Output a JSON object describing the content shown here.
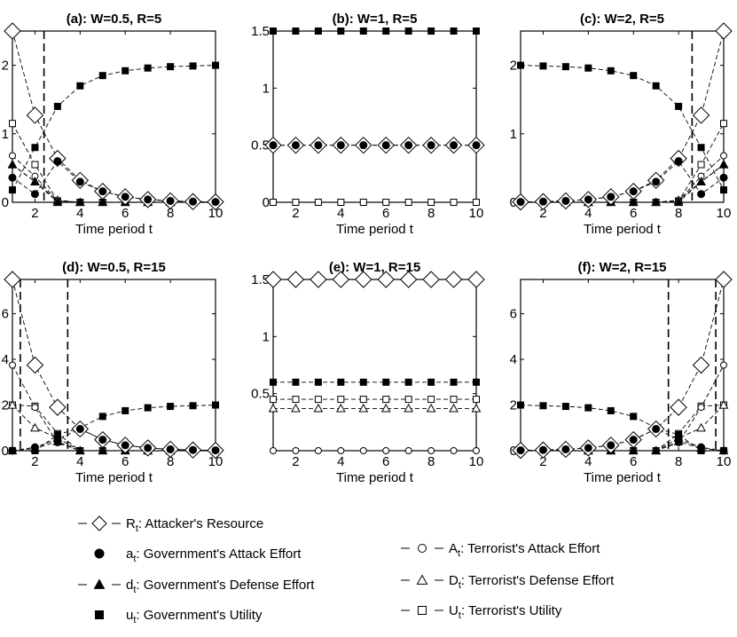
{
  "chart_data": [
    {
      "type": "line",
      "title": "(a): W=0.5, R=5",
      "xlabel": "Time period t",
      "ylabel": "",
      "xlim": [
        1,
        10
      ],
      "ylim": [
        0,
        2.5
      ],
      "xticks": [
        2,
        4,
        6,
        8,
        10
      ],
      "yticks": [
        0,
        1,
        2
      ],
      "dashed_vlines": [
        2.4
      ],
      "series": [
        {
          "key": "R",
          "x": [
            1,
            2,
            3,
            4,
            5,
            6,
            7,
            8,
            9,
            10
          ],
          "values": [
            2.5,
            1.27,
            0.64,
            0.32,
            0.16,
            0.08,
            0.04,
            0.02,
            0.01,
            0.005
          ]
        },
        {
          "key": "a",
          "x": [
            1,
            2,
            3,
            4,
            5,
            6,
            7,
            8,
            9,
            10
          ],
          "values": [
            0.36,
            0.12,
            0.6,
            0.3,
            0.16,
            0.08,
            0.04,
            0.02,
            0.01,
            0.005
          ]
        },
        {
          "key": "d",
          "x": [
            1,
            2,
            3,
            4,
            5,
            6,
            7,
            8,
            9,
            10
          ],
          "values": [
            0.55,
            0.3,
            0,
            0,
            0,
            0,
            0,
            0,
            0,
            0
          ]
        },
        {
          "key": "u",
          "x": [
            1,
            2,
            3,
            4,
            5,
            6,
            7,
            8,
            9,
            10
          ],
          "values": [
            0.18,
            0.8,
            1.4,
            1.7,
            1.85,
            1.92,
            1.96,
            1.98,
            1.99,
            2.0
          ]
        },
        {
          "key": "A",
          "x": [
            1,
            2,
            3,
            4,
            5,
            6,
            7,
            8,
            9,
            10
          ],
          "values": [
            0.68,
            0.38,
            0.02,
            0,
            0,
            0,
            0,
            0,
            0,
            0
          ]
        },
        {
          "key": "D",
          "x": [
            1,
            2,
            3,
            4,
            5,
            6,
            7,
            8,
            9,
            10
          ],
          "values": [
            0.55,
            0.3,
            0.03,
            0,
            0,
            0,
            0,
            0,
            0,
            0
          ]
        },
        {
          "key": "U",
          "x": [
            1,
            2,
            3,
            4,
            5,
            6,
            7,
            8,
            9,
            10
          ],
          "values": [
            1.15,
            0.55,
            0.02,
            0,
            0,
            0,
            0,
            0,
            0,
            0
          ]
        }
      ]
    },
    {
      "type": "line",
      "title": "(b): W=1, R=5",
      "xlabel": "Time period t",
      "ylabel": "",
      "xlim": [
        1,
        10
      ],
      "ylim": [
        0,
        1.5
      ],
      "xticks": [
        2,
        4,
        6,
        8,
        10
      ],
      "yticks": [
        0,
        0.5,
        1,
        1.5
      ],
      "dashed_vlines": [],
      "series": [
        {
          "key": "R",
          "x": [
            1,
            2,
            3,
            4,
            5,
            6,
            7,
            8,
            9,
            10
          ],
          "values": [
            0.5,
            0.5,
            0.5,
            0.5,
            0.5,
            0.5,
            0.5,
            0.5,
            0.5,
            0.5
          ]
        },
        {
          "key": "a",
          "x": [
            1,
            2,
            3,
            4,
            5,
            6,
            7,
            8,
            9,
            10
          ],
          "values": [
            0.5,
            0.5,
            0.5,
            0.5,
            0.5,
            0.5,
            0.5,
            0.5,
            0.5,
            0.5
          ]
        },
        {
          "key": "u",
          "x": [
            1,
            2,
            3,
            4,
            5,
            6,
            7,
            8,
            9,
            10
          ],
          "values": [
            1.5,
            1.5,
            1.5,
            1.5,
            1.5,
            1.5,
            1.5,
            1.5,
            1.5,
            1.5
          ]
        },
        {
          "key": "U",
          "x": [
            1,
            2,
            3,
            4,
            5,
            6,
            7,
            8,
            9,
            10
          ],
          "values": [
            0,
            0,
            0,
            0,
            0,
            0,
            0,
            0,
            0,
            0
          ]
        }
      ]
    },
    {
      "type": "line",
      "title": "(c): W=2, R=5",
      "xlabel": "Time period t",
      "ylabel": "",
      "xlim": [
        1,
        10
      ],
      "ylim": [
        0,
        2.5
      ],
      "xticks": [
        2,
        4,
        6,
        8,
        10
      ],
      "yticks": [
        0,
        1,
        2
      ],
      "dashed_vlines": [
        8.6
      ],
      "series": [
        {
          "key": "R",
          "x": [
            1,
            2,
            3,
            4,
            5,
            6,
            7,
            8,
            9,
            10
          ],
          "values": [
            0.005,
            0.01,
            0.02,
            0.04,
            0.08,
            0.16,
            0.32,
            0.64,
            1.27,
            2.5
          ]
        },
        {
          "key": "a",
          "x": [
            1,
            2,
            3,
            4,
            5,
            6,
            7,
            8,
            9,
            10
          ],
          "values": [
            0.005,
            0.01,
            0.02,
            0.04,
            0.08,
            0.16,
            0.3,
            0.6,
            0.12,
            0.36
          ]
        },
        {
          "key": "d",
          "x": [
            1,
            2,
            3,
            4,
            5,
            6,
            7,
            8,
            9,
            10
          ],
          "values": [
            0,
            0,
            0,
            0,
            0,
            0,
            0,
            0,
            0.3,
            0.55
          ]
        },
        {
          "key": "u",
          "x": [
            1,
            2,
            3,
            4,
            5,
            6,
            7,
            8,
            9,
            10
          ],
          "values": [
            2.0,
            1.99,
            1.98,
            1.96,
            1.92,
            1.85,
            1.7,
            1.4,
            0.8,
            0.18
          ]
        },
        {
          "key": "A",
          "x": [
            1,
            2,
            3,
            4,
            5,
            6,
            7,
            8,
            9,
            10
          ],
          "values": [
            0,
            0,
            0,
            0,
            0,
            0,
            0,
            0.02,
            0.38,
            0.68
          ]
        },
        {
          "key": "D",
          "x": [
            1,
            2,
            3,
            4,
            5,
            6,
            7,
            8,
            9,
            10
          ],
          "values": [
            0,
            0,
            0,
            0,
            0,
            0,
            0,
            0.03,
            0.3,
            0.55
          ]
        },
        {
          "key": "U",
          "x": [
            1,
            2,
            3,
            4,
            5,
            6,
            7,
            8,
            9,
            10
          ],
          "values": [
            0,
            0,
            0,
            0,
            0,
            0,
            0,
            0.02,
            0.55,
            1.15
          ]
        }
      ]
    },
    {
      "type": "line",
      "title": "(d): W=0.5, R=15",
      "xlabel": "Time period t",
      "ylabel": "",
      "xlim": [
        1,
        10
      ],
      "ylim": [
        0,
        7.5
      ],
      "xticks": [
        2,
        4,
        6,
        8,
        10
      ],
      "yticks": [
        0,
        2,
        4,
        6
      ],
      "dashed_vlines": [
        1.35,
        3.45
      ],
      "series": [
        {
          "key": "R",
          "x": [
            1,
            2,
            3,
            4,
            5,
            6,
            7,
            8,
            9,
            10
          ],
          "values": [
            7.5,
            3.75,
            1.9,
            0.95,
            0.48,
            0.24,
            0.12,
            0.06,
            0.03,
            0.015
          ]
        },
        {
          "key": "a",
          "x": [
            1,
            2,
            3,
            4,
            5,
            6,
            7,
            8,
            9,
            10
          ],
          "values": [
            0,
            0.15,
            0.5,
            0.95,
            0.48,
            0.24,
            0.12,
            0.06,
            0.03,
            0.015
          ]
        },
        {
          "key": "d",
          "x": [
            1,
            2,
            3,
            4,
            5,
            6,
            7,
            8,
            9,
            10
          ],
          "values": [
            0,
            0.1,
            0.4,
            0,
            0,
            0,
            0,
            0,
            0,
            0
          ]
        },
        {
          "key": "u",
          "x": [
            1,
            2,
            3,
            4,
            5,
            6,
            7,
            8,
            9,
            10
          ],
          "values": [
            0,
            0,
            0.7,
            1.0,
            1.5,
            1.75,
            1.88,
            1.94,
            1.97,
            2.0
          ]
        },
        {
          "key": "A",
          "x": [
            1,
            2,
            3,
            4,
            5,
            6,
            7,
            8,
            9,
            10
          ],
          "values": [
            3.75,
            1.9,
            0.35,
            0,
            0,
            0,
            0,
            0,
            0,
            0
          ]
        },
        {
          "key": "D",
          "x": [
            1,
            2,
            3,
            4,
            5,
            6,
            7,
            8,
            9,
            10
          ],
          "values": [
            2.0,
            1.0,
            0.55,
            0,
            0,
            0,
            0,
            0,
            0,
            0
          ]
        },
        {
          "key": "U",
          "x": [
            1,
            2,
            3,
            4,
            5,
            6,
            7,
            8,
            9,
            10
          ],
          "values": [
            2.0,
            1.95,
            0.75,
            0,
            0,
            0,
            0,
            0,
            0,
            0
          ]
        }
      ]
    },
    {
      "type": "line",
      "title": "(e): W=1, R=15",
      "xlabel": "Time period t",
      "ylabel": "",
      "xlim": [
        1,
        10
      ],
      "ylim": [
        0,
        1.5
      ],
      "xticks": [
        2,
        4,
        6,
        8,
        10
      ],
      "yticks": [
        0.5,
        1,
        1.5
      ],
      "dashed_vlines": [],
      "series": [
        {
          "key": "R",
          "x": [
            1,
            2,
            3,
            4,
            5,
            6,
            7,
            8,
            9,
            10
          ],
          "values": [
            1.5,
            1.5,
            1.5,
            1.5,
            1.5,
            1.5,
            1.5,
            1.5,
            1.5,
            1.5
          ]
        },
        {
          "key": "u",
          "x": [
            1,
            2,
            3,
            4,
            5,
            6,
            7,
            8,
            9,
            10
          ],
          "values": [
            0.6,
            0.6,
            0.6,
            0.6,
            0.6,
            0.6,
            0.6,
            0.6,
            0.6,
            0.6
          ]
        },
        {
          "key": "U",
          "x": [
            1,
            2,
            3,
            4,
            5,
            6,
            7,
            8,
            9,
            10
          ],
          "values": [
            0.45,
            0.45,
            0.45,
            0.45,
            0.45,
            0.45,
            0.45,
            0.45,
            0.45,
            0.45
          ]
        },
        {
          "key": "D",
          "x": [
            1,
            2,
            3,
            4,
            5,
            6,
            7,
            8,
            9,
            10
          ],
          "values": [
            0.37,
            0.37,
            0.37,
            0.37,
            0.37,
            0.37,
            0.37,
            0.37,
            0.37,
            0.37
          ]
        },
        {
          "key": "A",
          "x": [
            1,
            2,
            3,
            4,
            5,
            6,
            7,
            8,
            9,
            10
          ],
          "values": [
            0,
            0,
            0,
            0,
            0,
            0,
            0,
            0,
            0,
            0
          ]
        }
      ]
    },
    {
      "type": "line",
      "title": "(f): W=2, R=15",
      "xlabel": "Time period t",
      "ylabel": "",
      "xlim": [
        1,
        10
      ],
      "ylim": [
        0,
        7.5
      ],
      "xticks": [
        2,
        4,
        6,
        8,
        10
      ],
      "yticks": [
        0,
        2,
        4,
        6
      ],
      "dashed_vlines": [
        7.55,
        9.65
      ],
      "series": [
        {
          "key": "R",
          "x": [
            1,
            2,
            3,
            4,
            5,
            6,
            7,
            8,
            9,
            10
          ],
          "values": [
            0.015,
            0.03,
            0.06,
            0.12,
            0.24,
            0.48,
            0.95,
            1.9,
            3.75,
            7.5
          ]
        },
        {
          "key": "a",
          "x": [
            1,
            2,
            3,
            4,
            5,
            6,
            7,
            8,
            9,
            10
          ],
          "values": [
            0.015,
            0.03,
            0.06,
            0.12,
            0.24,
            0.48,
            0.95,
            0.5,
            0.15,
            0
          ]
        },
        {
          "key": "d",
          "x": [
            1,
            2,
            3,
            4,
            5,
            6,
            7,
            8,
            9,
            10
          ],
          "values": [
            0,
            0,
            0,
            0,
            0,
            0,
            0,
            0.4,
            0.1,
            0
          ]
        },
        {
          "key": "u",
          "x": [
            1,
            2,
            3,
            4,
            5,
            6,
            7,
            8,
            9,
            10
          ],
          "values": [
            2.0,
            1.97,
            1.94,
            1.88,
            1.75,
            1.5,
            1.0,
            0.7,
            0,
            0
          ]
        },
        {
          "key": "A",
          "x": [
            1,
            2,
            3,
            4,
            5,
            6,
            7,
            8,
            9,
            10
          ],
          "values": [
            0,
            0,
            0,
            0,
            0,
            0,
            0,
            0.35,
            1.9,
            3.75
          ]
        },
        {
          "key": "D",
          "x": [
            1,
            2,
            3,
            4,
            5,
            6,
            7,
            8,
            9,
            10
          ],
          "values": [
            0,
            0,
            0,
            0,
            0,
            0,
            0,
            0.55,
            1.0,
            2.0
          ]
        },
        {
          "key": "U",
          "x": [
            1,
            2,
            3,
            4,
            5,
            6,
            7,
            8,
            9,
            10
          ],
          "values": [
            0,
            0,
            0,
            0,
            0,
            0,
            0,
            0.75,
            1.95,
            2.0
          ]
        }
      ]
    }
  ],
  "legend": {
    "items": [
      {
        "key": "R",
        "marker": "diamond-open",
        "sym": "R",
        "sub": "t",
        "text": ": Attacker's Resource",
        "dashed": true
      },
      {
        "key": "a",
        "marker": "circle-filled",
        "sym": "a",
        "sub": "t",
        "text": ": Government's Attack Effort",
        "dashed": false
      },
      {
        "key": "d",
        "marker": "triangle-filled",
        "sym": "d",
        "sub": "t",
        "text": ": Government's Defense Effort",
        "dashed": true
      },
      {
        "key": "u",
        "marker": "square-filled",
        "sym": "u",
        "sub": "t",
        "text": ": Government's Utility",
        "dashed": false
      },
      {
        "key": "A",
        "marker": "circle-open",
        "sym": "A",
        "sub": "t",
        "text": ": Terrorist's Attack Effort",
        "dashed": true
      },
      {
        "key": "D",
        "marker": "triangle-open",
        "sym": "D",
        "sub": "t",
        "text": ": Terrorist's Defense Effort",
        "dashed": true
      },
      {
        "key": "U",
        "marker": "square-open",
        "sym": "U",
        "sub": "t",
        "text": ": Terrorist's Utility",
        "dashed": true
      }
    ]
  }
}
